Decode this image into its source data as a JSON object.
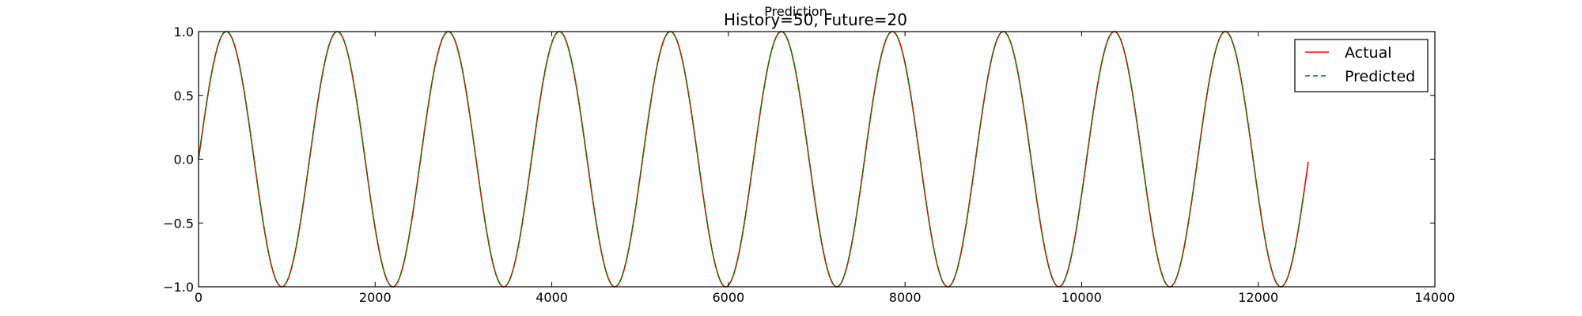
{
  "chart_data": {
    "type": "line",
    "title": "History=50, Future=20",
    "suptitle": "Prediction",
    "xlabel": "",
    "ylabel": "",
    "xlim": [
      0,
      14000
    ],
    "ylim": [
      -1.0,
      1.0
    ],
    "xticks": [
      0,
      2000,
      4000,
      6000,
      8000,
      10000,
      12000,
      14000
    ],
    "xtick_labels": [
      "0",
      "2000",
      "4000",
      "6000",
      "8000",
      "10000",
      "12000",
      "14000"
    ],
    "yticks": [
      1.0,
      0.5,
      0.0,
      -0.5,
      -1.0
    ],
    "ytick_labels": [
      "1.0",
      "0.5",
      "0.0",
      "−0.5",
      "−1.0"
    ],
    "grid": false,
    "legend_position": "top-right",
    "series": [
      {
        "name": "Actual",
        "color": "#ff0000",
        "style": "solid",
        "function": "sine",
        "period": 1257,
        "amplitude": 1.0,
        "x_start": 0,
        "x_end": 12566
      },
      {
        "name": "Predicted",
        "color": "#008000",
        "style": "dashed",
        "function": "sine",
        "period": 1257,
        "amplitude": 1.0,
        "x_start": 0,
        "x_end": 12516
      }
    ]
  }
}
